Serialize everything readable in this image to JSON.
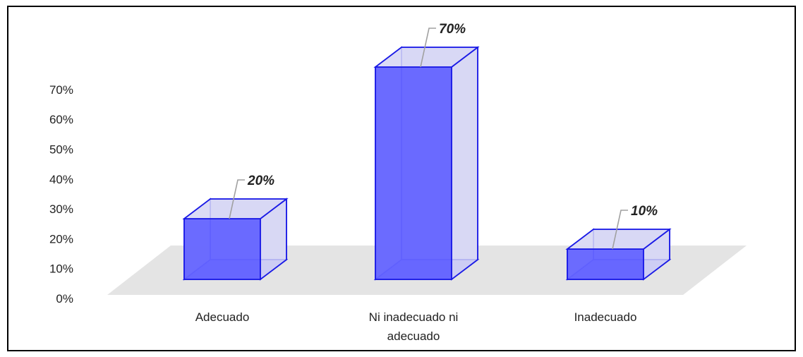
{
  "chart_data": {
    "type": "bar",
    "style": "3d-column",
    "categories": [
      "Adecuado",
      "Ni inadecuado ni adecuado",
      "Inadecuado"
    ],
    "category_lines": [
      [
        "Adecuado"
      ],
      [
        "Ni inadecuado ni",
        "adecuado"
      ],
      [
        "Inadecuado"
      ]
    ],
    "values": [
      20,
      70,
      10
    ],
    "data_labels": [
      "20%",
      "70%",
      "10%"
    ],
    "ylim": [
      0,
      70
    ],
    "yticks": [
      0,
      10,
      20,
      30,
      40,
      50,
      60,
      70
    ],
    "ytick_labels": [
      "0%",
      "10%",
      "20%",
      "30%",
      "40%",
      "50%",
      "60%",
      "70%"
    ],
    "grid": false,
    "legend": "none",
    "title": "",
    "xlabel": "",
    "ylabel": ""
  },
  "colors": {
    "bar_front": "#6464ff",
    "bar_side": "#d8d8f4",
    "bar_edge": "#1a1ae6",
    "floor": "#e4e4e4",
    "leader": "#a0a0a0"
  }
}
